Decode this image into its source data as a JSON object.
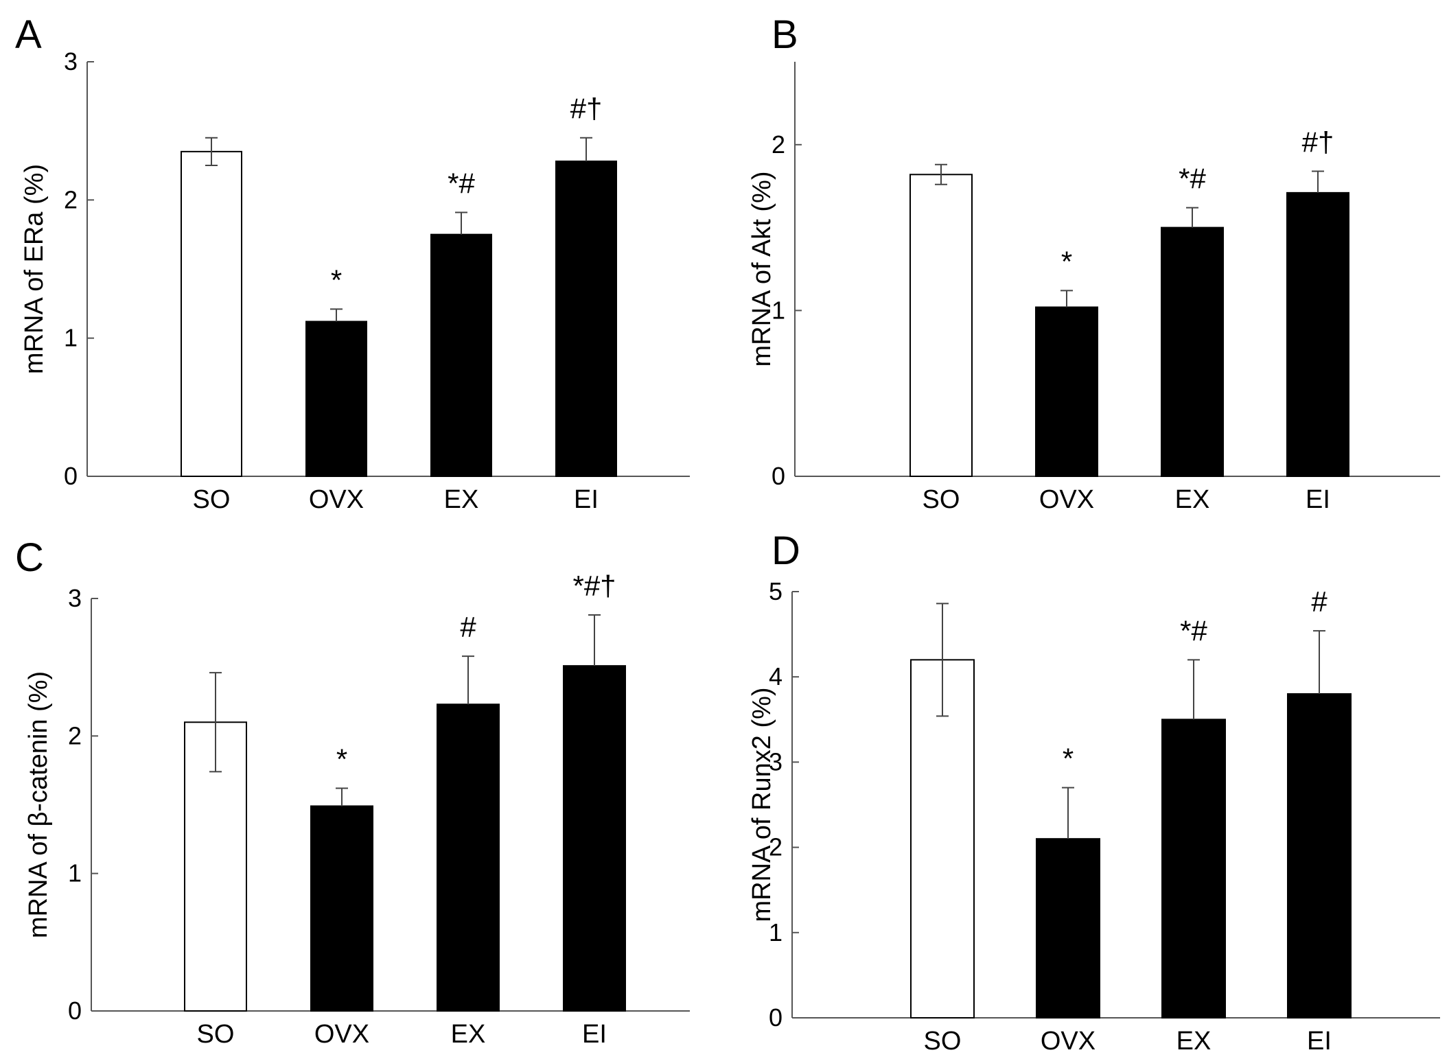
{
  "chart_data": [
    {
      "type": "bar",
      "panel": "A",
      "categories": [
        "SO",
        "OVX",
        "EX",
        "EI"
      ],
      "values": [
        2.35,
        1.12,
        1.75,
        2.28
      ],
      "errors": [
        0.1,
        0.09,
        0.16,
        0.17
      ],
      "annotations": [
        "",
        "*",
        "*#",
        "#†"
      ],
      "ylabel": "mRNA of ERa (%)",
      "xlabel": "",
      "ylim": [
        0,
        3
      ],
      "yticks": [
        0,
        1,
        2,
        3
      ],
      "bar_colors": [
        "#ffffff",
        "#000000",
        "#000000",
        "#000000"
      ]
    },
    {
      "type": "bar",
      "panel": "B",
      "categories": [
        "SO",
        "OVX",
        "EX",
        "EI"
      ],
      "values": [
        1.82,
        1.02,
        1.5,
        1.71
      ],
      "errors": [
        0.06,
        0.1,
        0.12,
        0.13
      ],
      "annotations": [
        "",
        "*",
        "*#",
        "#†"
      ],
      "ylabel": "mRNA of Akt (%)",
      "xlabel": "",
      "ylim": [
        0,
        2.5
      ],
      "yticks": [
        0,
        1,
        2
      ],
      "bar_colors": [
        "#ffffff",
        "#000000",
        "#000000",
        "#000000"
      ]
    },
    {
      "type": "bar",
      "panel": "C",
      "categories": [
        "SO",
        "OVX",
        "EX",
        "EI"
      ],
      "values": [
        2.1,
        1.49,
        2.23,
        2.51
      ],
      "errors": [
        0.36,
        0.13,
        0.35,
        0.37
      ],
      "annotations": [
        "",
        "*",
        "#",
        "*#†"
      ],
      "ylabel": "mRNA of β-catenin (%)",
      "xlabel": "",
      "ylim": [
        0,
        3
      ],
      "yticks": [
        0,
        1,
        2,
        3
      ],
      "bar_colors": [
        "#ffffff",
        "#000000",
        "#000000",
        "#000000"
      ]
    },
    {
      "type": "bar",
      "panel": "D",
      "categories": [
        "SO",
        "OVX",
        "EX",
        "EI"
      ],
      "values": [
        4.2,
        2.1,
        3.5,
        3.8
      ],
      "errors": [
        0.66,
        0.6,
        0.7,
        0.74
      ],
      "annotations": [
        "",
        "*",
        "*#",
        "#"
      ],
      "ylabel": "mRNA of Runx2 (%)",
      "xlabel": "",
      "ylim": [
        0,
        5
      ],
      "yticks": [
        0,
        1,
        2,
        3,
        4,
        5
      ],
      "bar_colors": [
        "#ffffff",
        "#000000",
        "#000000",
        "#000000"
      ]
    }
  ]
}
